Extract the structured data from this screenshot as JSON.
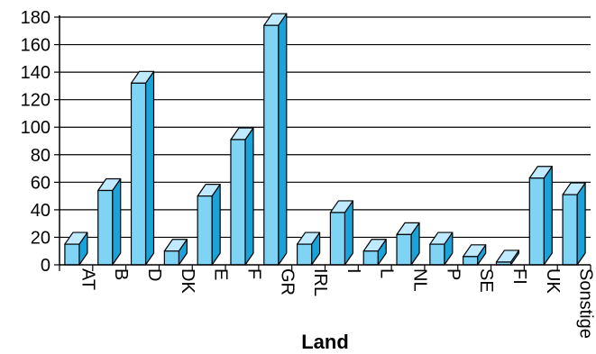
{
  "chart_data": {
    "type": "bar",
    "categories": [
      "AT",
      "B",
      "D",
      "DK",
      "E",
      "F",
      "GR",
      "IRL",
      "I",
      "L",
      "NL",
      "P",
      "SE",
      "FI",
      "UK",
      "Sonstige"
    ],
    "values": [
      15,
      54,
      132,
      10,
      50,
      91,
      174,
      15,
      38,
      10,
      22,
      15,
      6,
      2,
      63,
      51
    ],
    "title": "",
    "xlabel": "Land",
    "ylabel": "",
    "ylim": [
      0,
      180
    ],
    "yticks": [
      0,
      20,
      40,
      60,
      80,
      100,
      120,
      140,
      160,
      180
    ],
    "grid": true,
    "legend": "none",
    "colors": {
      "front": "#7fd4f5",
      "side": "#1aa3d9",
      "top": "#bfeaff",
      "edge": "#000000"
    }
  }
}
